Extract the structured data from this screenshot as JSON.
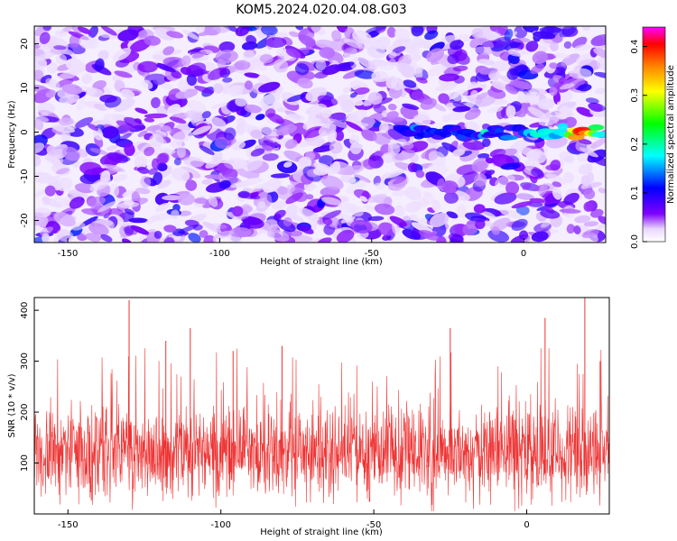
{
  "title": "KOM5.2024.020.04.08.G03",
  "chart_data": [
    {
      "type": "heatmap",
      "xlabel": "Height of straight line (km)",
      "ylabel": "Frequency (Hz)",
      "xlim": [
        -161,
        27
      ],
      "ylim": [
        -25,
        24
      ],
      "x_ticks": [
        -150,
        -100,
        -50,
        0
      ],
      "y_ticks": [
        -20,
        -10,
        0,
        10,
        20
      ],
      "colorbar": {
        "label": "Normalized spectral amplitude",
        "range": [
          0.0,
          0.44
        ],
        "ticks": [
          0.0,
          0.1,
          0.2,
          0.3,
          0.4
        ],
        "colormap": [
          "#ffffff",
          "#8000ff",
          "#0000ff",
          "#00ffff",
          "#00ff00",
          "#ffff00",
          "#ff8000",
          "#ff0000",
          "#ff00ff"
        ]
      },
      "signal": {
        "frequency_hz": 0,
        "x_range": [
          -40,
          25
        ],
        "peak_x": 19,
        "peak_amplitude": 0.42
      }
    },
    {
      "type": "line",
      "xlabel": "Height of straight line (km)",
      "ylabel": "SNR (10 * v/v)",
      "xlim": [
        -161,
        27
      ],
      "ylim": [
        0,
        425
      ],
      "x_ticks": [
        -150,
        -100,
        -50,
        0
      ],
      "y_ticks": [
        100,
        200,
        300,
        400
      ],
      "line_color": "#ee3333",
      "baseline": 120,
      "peaks": [
        {
          "x": -130,
          "y": 420
        },
        {
          "x": -118,
          "y": 340
        },
        {
          "x": -110,
          "y": 365
        },
        {
          "x": -96,
          "y": 320
        },
        {
          "x": -80,
          "y": 330
        },
        {
          "x": -25,
          "y": 365
        },
        {
          "x": 6,
          "y": 385
        },
        {
          "x": 19,
          "y": 425
        },
        {
          "x": 24,
          "y": 300
        }
      ]
    }
  ]
}
